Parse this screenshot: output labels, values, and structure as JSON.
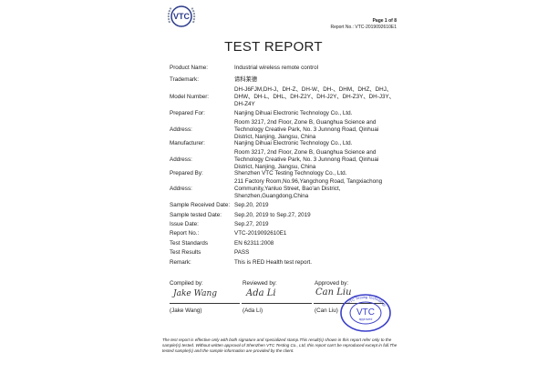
{
  "header": {
    "logo_text": "VTC",
    "page": "Page 1 of 8",
    "report_no": "Report No.: VTC-2019092610E1"
  },
  "title": "TEST REPORT",
  "fields": [
    {
      "label": "Product Name:",
      "value": "Industrial wireless remote control"
    },
    {
      "label": "Trademark:",
      "value": "谛科莱德"
    },
    {
      "label": "Model Number:",
      "value": "DH-J6FJM,DH-J、DH-Z、DH-W、DH-、DHM、DHZ、DHJ、DHW、DH-L、DHL、DH-Z2Y、DH-J2Y、DH-Z3Y、DH-J3Y、DH-Z4Y"
    },
    {
      "label": "Prepared For:",
      "value": "Nanjing Dihuai Electronic Technology Co., Ltd."
    },
    {
      "label": "Address:",
      "value": "Room 3217, 2nd Floor, Zone B, Guanghua Science and Technology Creative Park, No. 3 Junnong Road, Qinhuai District, Nanjing, Jiangsu, China"
    },
    {
      "label": "Manufacturer:",
      "value": "Nanjing Dihuai Electronic Technology Co., Ltd."
    },
    {
      "label": "Address:",
      "value": "Room 3217, 2nd Floor, Zone B, Guanghua Science and Technology Creative Park, No. 3 Junnong Road, Qinhuai District, Nanjing, Jiangsu, China"
    },
    {
      "label": "Prepared By:",
      "value": "Shenzhen VTC Testing Technology Co., Ltd."
    },
    {
      "label": "Address:",
      "value": "211 Factory Room,No.96,Yangchong Road, Tangxiachong Community,Yanluo Street, Bao'an District, Shenzhen,Guangdong,China"
    },
    {
      "label": "Sample Received Date:",
      "value": "Sep.20, 2019"
    },
    {
      "label": "Sample tested Date:",
      "value": "Sep.20, 2019 to Sep.27, 2019"
    },
    {
      "label": "Issue Date:",
      "value": "Sep.27, 2019"
    },
    {
      "label": "Report No.:",
      "value": "VTC-2019092610E1"
    },
    {
      "label": "Test Standards",
      "value": "EN 62311:2008"
    },
    {
      "label": "Test Results",
      "value": "PASS"
    },
    {
      "label": "Remark:",
      "value": "This is RED Health test report."
    }
  ],
  "signatures": {
    "compiled_label": "Compiled by:",
    "compiled_sig": "Jake Wang",
    "compiled_name": "(Jake Wang)",
    "reviewed_label": "Reviewed by:",
    "reviewed_sig": "Ada Li",
    "reviewed_name": "(Ada Li)",
    "approved_label": "Approved by:",
    "approved_sig": "Can Liu",
    "approved_name": "(Can Liu)"
  },
  "stamp": {
    "main": "VTC",
    "sub": "approved",
    "ring": "VTC Testing Technology",
    "color": "#3a3fc8"
  },
  "footer": "The test report is effective only with both signature and specialized stamp.This result(s) shown in this report refer only to the sample(s) tested. Without written approval of Shenzhen VTC Testing Co., Ltd, this report can't be reproduced except in full.The tested sample(s) and the sample information are provided by the client."
}
